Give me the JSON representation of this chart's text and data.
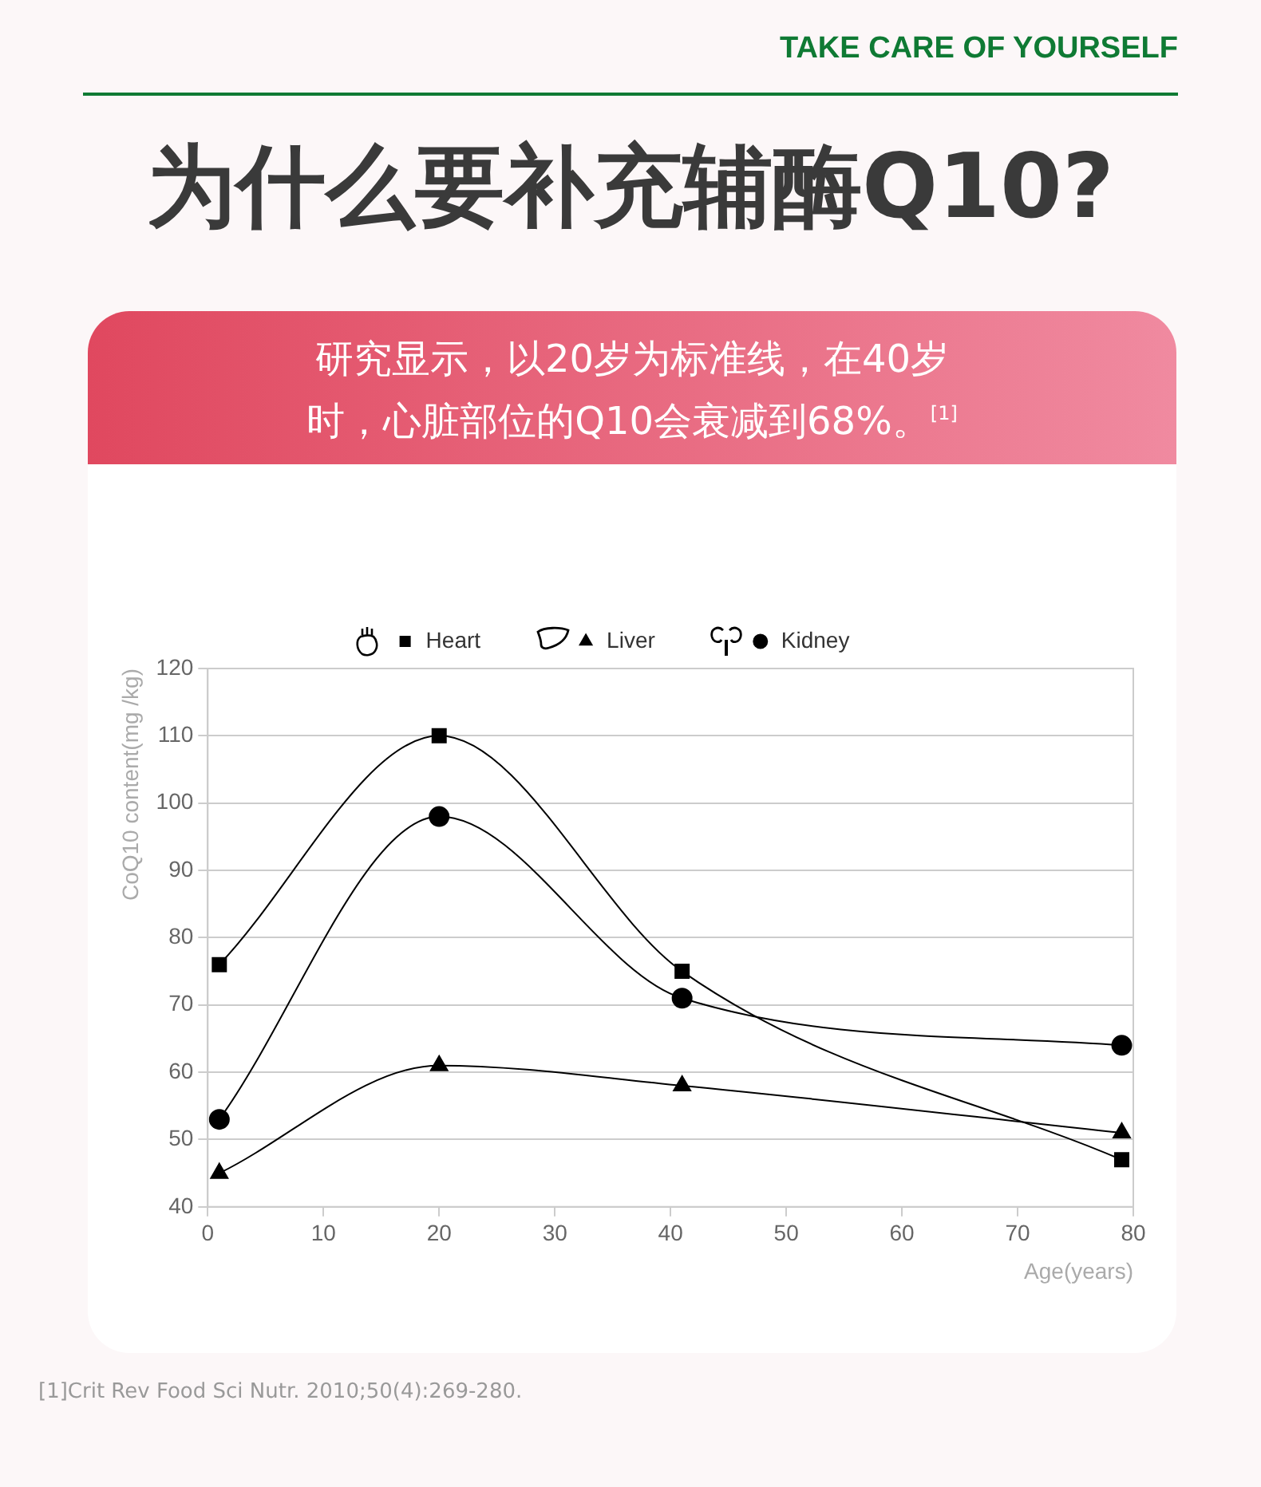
{
  "chart_data": {
    "type": "line",
    "title": "为什么要补充辅酶Q10?",
    "subtitle": "研究显示，以20岁为标准线，在40岁时，心脏部位的Q10会衰减到68%。$^{[1]}$",
    "xlabel": "Age(years)",
    "ylabel": "CoQ10 content(mg /kg)",
    "annotations": [
      "TAKE CARE OF YOURSELF",
      "[1]Crit Rev Food Sci Nutr. 2010;50(4):269-280."
    ],
    "x": [
      1,
      20,
      41,
      79
    ],
    "series": [
      {
        "name": "Heart",
        "color": "#000000",
        "marker": "square",
        "values": [
          76,
          110,
          75,
          47
        ]
      },
      {
        "name": "Liver",
        "color": "#000000",
        "marker": "triangle",
        "values": [
          45,
          61,
          58,
          51
        ]
      },
      {
        "name": "Kidney",
        "color": "#000000",
        "marker": "circle",
        "values": [
          53,
          98,
          71,
          64
        ]
      }
    ],
    "xlim": [
      0,
      80
    ],
    "xticks": [
      0,
      10,
      20,
      30,
      40,
      50,
      60,
      70,
      80
    ],
    "ylim": [
      40,
      120
    ],
    "yticks": [
      40,
      50,
      60,
      70,
      80,
      90,
      100,
      110,
      120
    ],
    "grid": "y",
    "legend": "top",
    "line_style": "solid"
  }
}
